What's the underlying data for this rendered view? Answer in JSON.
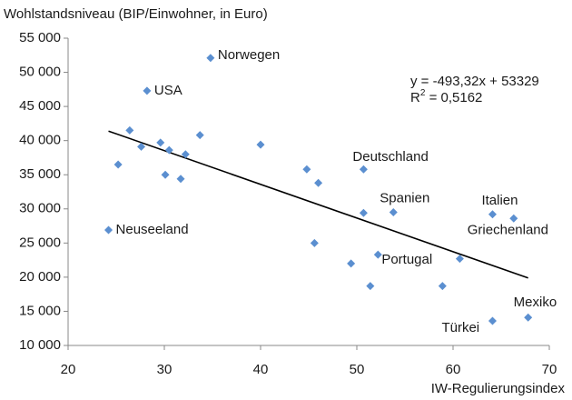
{
  "chart_data": {
    "type": "scatter",
    "y_axis_title": "Wohlstandsniveau (BIP/Einwohner, in Euro)",
    "x_axis_title": "IW-Regulierungsindex",
    "color": "#5b8fd0",
    "grid": false,
    "x": [
      24.2,
      25.2,
      26.4,
      27.6,
      28.2,
      29.6,
      30.1,
      30.5,
      31.7,
      32.2,
      33.7,
      34.8,
      40.0,
      44.8,
      46.0,
      45.6,
      49.4,
      50.7,
      50.7,
      53.8,
      51.4,
      52.2,
      58.9,
      60.7,
      64.1,
      64.1,
      66.3,
      67.8
    ],
    "values": [
      26900,
      36500,
      41500,
      39100,
      47300,
      39700,
      35000,
      38600,
      34400,
      38000,
      40800,
      52100,
      39400,
      35800,
      33800,
      25000,
      22000,
      35800,
      29400,
      29500,
      18700,
      23300,
      18700,
      22700,
      29200,
      13600,
      28600,
      14100
    ],
    "labels": [
      "Neuseeland",
      null,
      null,
      null,
      "USA",
      null,
      null,
      null,
      null,
      null,
      null,
      "Norwegen",
      null,
      null,
      null,
      null,
      null,
      "Deutschland",
      null,
      "Spanien",
      null,
      "Portugal",
      null,
      null,
      "Italien",
      "Türkei",
      "Griechenland",
      "Mexiko"
    ],
    "xlim": [
      20,
      70
    ],
    "xticks": [
      20,
      30,
      40,
      50,
      60,
      70
    ],
    "ylim": [
      10000,
      55000
    ],
    "yticks": [
      {
        "value": 10000,
        "label": "10 000"
      },
      {
        "value": 15000,
        "label": "15 000"
      },
      {
        "value": 20000,
        "label": "20 000"
      },
      {
        "value": 25000,
        "label": "25 000"
      },
      {
        "value": 30000,
        "label": "30 000"
      },
      {
        "value": 35000,
        "label": "35 000"
      },
      {
        "value": 40000,
        "label": "40 000"
      },
      {
        "value": 45000,
        "label": "45 000"
      },
      {
        "value": 50000,
        "label": "50 000"
      },
      {
        "value": 55000,
        "label": "55 000"
      }
    ],
    "trendline": {
      "slope": -493.32,
      "intercept": 53329,
      "color": "#000000",
      "equation": "y = -493,32x + 53329",
      "r_squared": {
        "base": "R",
        "sup": "2",
        "rest": " = 0,5162"
      }
    }
  }
}
